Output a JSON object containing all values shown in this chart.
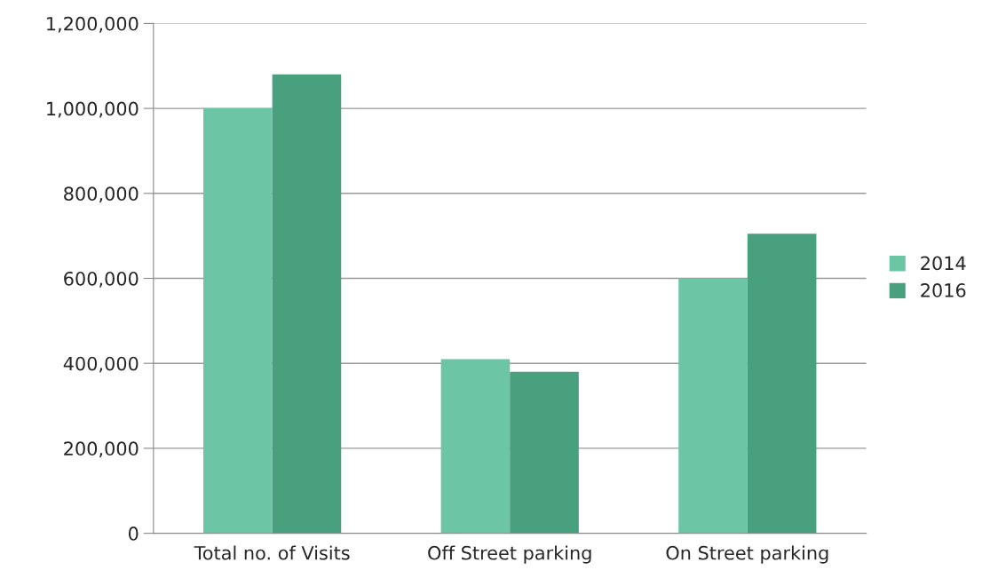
{
  "chart_data": {
    "type": "bar",
    "categories": [
      "Total no. of Visits",
      "Off Street parking",
      "On Street parking"
    ],
    "series": [
      {
        "name": "2014",
        "color": "#6cc5a5",
        "values": [
          1000000,
          410000,
          600000
        ]
      },
      {
        "name": "2016",
        "color": "#48a07f",
        "values": [
          1080000,
          380000,
          705000
        ]
      }
    ],
    "ylim": [
      0,
      1200000
    ],
    "yticks": [
      {
        "value": 0,
        "label": "0"
      },
      {
        "value": 200000,
        "label": "200,000"
      },
      {
        "value": 400000,
        "label": "400,000"
      },
      {
        "value": 600000,
        "label": "600,000"
      },
      {
        "value": 800000,
        "label": "800,000"
      },
      {
        "value": 1000000,
        "label": "1,000,000"
      },
      {
        "value": 1200000,
        "label": "1,200,000"
      }
    ],
    "grid": "y",
    "legend": "right"
  }
}
